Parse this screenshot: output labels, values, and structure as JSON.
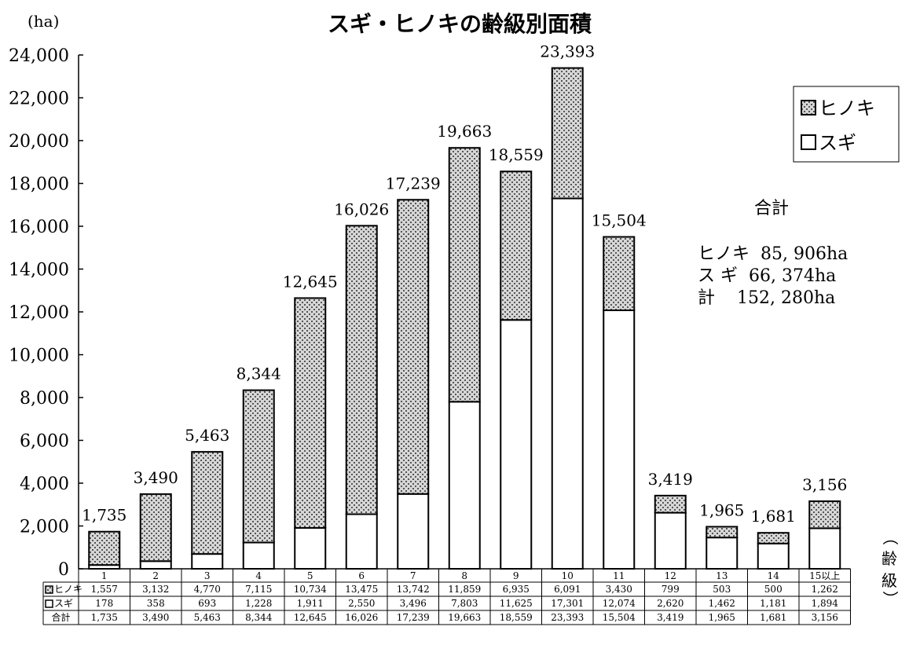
{
  "chart_data": {
    "type": "bar",
    "stacked": true,
    "title": "スギ・ヒノキの齢級別面積",
    "ylabel": "(ha)",
    "xlabel_parts": [
      "（",
      "齢",
      "級",
      "）"
    ],
    "ylim": [
      0,
      24000
    ],
    "yticks": [
      "0",
      "2,000",
      "4,000",
      "6,000",
      "8,000",
      "10,000",
      "12,000",
      "14,000",
      "16,000",
      "18,000",
      "20,000",
      "22,000",
      "24,000"
    ],
    "categories": [
      "1",
      "2",
      "3",
      "4",
      "5",
      "6",
      "7",
      "8",
      "9",
      "10",
      "11",
      "12",
      "13",
      "14",
      "15以上"
    ],
    "series": [
      {
        "name": "スギ",
        "values": [
          178,
          358,
          693,
          1228,
          1911,
          2550,
          3496,
          7803,
          11625,
          17301,
          12074,
          2620,
          1462,
          1181,
          1894
        ],
        "color": "#ffffff"
      },
      {
        "name": "ヒノキ",
        "values": [
          1557,
          3132,
          4770,
          7115,
          10734,
          13475,
          13742,
          11859,
          6935,
          6091,
          3430,
          799,
          503,
          500,
          1262
        ],
        "pattern": "dotted"
      }
    ],
    "totals": [
      1735,
      3490,
      5463,
      8344,
      12645,
      16026,
      17239,
      19663,
      18559,
      23393,
      15504,
      3419,
      1965,
      1681,
      3156
    ],
    "total_labels": [
      "1,735",
      "3,490",
      "5,463",
      "8,344",
      "12,645",
      "16,026",
      "17,239",
      "19,663",
      "18,559",
      "23,393",
      "15,504",
      "3,419",
      "1,965",
      "1,681",
      "3,156"
    ],
    "legend": {
      "position": "top-right",
      "items": [
        "ヒノキ",
        "スギ"
      ]
    },
    "summary": {
      "heading": "合計",
      "lines": [
        "ヒノキ  85, 906ha",
        "ス ギ  66, 374ha",
        "計    152, 280ha"
      ]
    },
    "table": {
      "rows": [
        {
          "label": "ヒノキ",
          "marker": "hinoki",
          "values": [
            "1,557",
            "3,132",
            "4,770",
            "7,115",
            "10,734",
            "13,475",
            "13,742",
            "11,859",
            "6,935",
            "6,091",
            "3,430",
            "799",
            "503",
            "500",
            "1,262"
          ]
        },
        {
          "label": "スギ",
          "marker": "sugi",
          "values": [
            "178",
            "358",
            "693",
            "1,228",
            "1,911",
            "2,550",
            "3,496",
            "7,803",
            "11,625",
            "17,301",
            "12,074",
            "2,620",
            "1,462",
            "1,181",
            "1,894"
          ]
        },
        {
          "label": "合計",
          "marker": "",
          "values": [
            "1,735",
            "3,490",
            "5,463",
            "8,344",
            "12,645",
            "16,026",
            "17,239",
            "19,663",
            "18,559",
            "23,393",
            "15,504",
            "3,419",
            "1,965",
            "1,681",
            "3,156"
          ]
        }
      ]
    }
  }
}
